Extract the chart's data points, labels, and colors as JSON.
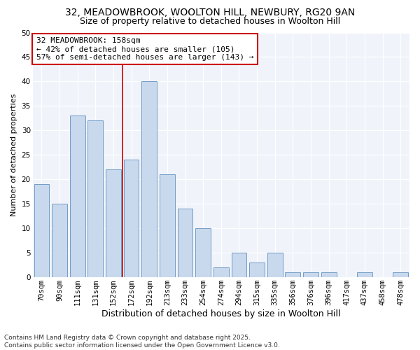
{
  "title": "32, MEADOWBROOK, WOOLTON HILL, NEWBURY, RG20 9AN",
  "subtitle": "Size of property relative to detached houses in Woolton Hill",
  "xlabel": "Distribution of detached houses by size in Woolton Hill",
  "ylabel": "Number of detached properties",
  "categories": [
    "70sqm",
    "90sqm",
    "111sqm",
    "131sqm",
    "152sqm",
    "172sqm",
    "192sqm",
    "213sqm",
    "233sqm",
    "254sqm",
    "274sqm",
    "294sqm",
    "315sqm",
    "335sqm",
    "356sqm",
    "376sqm",
    "396sqm",
    "417sqm",
    "437sqm",
    "458sqm",
    "478sqm"
  ],
  "values": [
    19,
    15,
    33,
    32,
    22,
    24,
    40,
    21,
    14,
    10,
    2,
    5,
    3,
    5,
    1,
    1,
    1,
    0,
    1,
    0,
    1
  ],
  "bar_color": "#c8d8ed",
  "bar_edge_color": "#6090c0",
  "ref_line_x": 4.5,
  "ref_line_color": "#cc0000",
  "annotation_title": "32 MEADOWBROOK: 158sqm",
  "annotation_line1": "← 42% of detached houses are smaller (105)",
  "annotation_line2": "57% of semi-detached houses are larger (143) →",
  "annotation_box_facecolor": "#ffffff",
  "annotation_box_edgecolor": "#cc0000",
  "ylim": [
    0,
    50
  ],
  "yticks": [
    0,
    5,
    10,
    15,
    20,
    25,
    30,
    35,
    40,
    45,
    50
  ],
  "bg_color": "#ffffff",
  "plot_bg_color": "#f0f4fa",
  "grid_color": "#ffffff",
  "footer": "Contains HM Land Registry data © Crown copyright and database right 2025.\nContains public sector information licensed under the Open Government Licence v3.0.",
  "title_fontsize": 10,
  "subtitle_fontsize": 9,
  "xlabel_fontsize": 9,
  "ylabel_fontsize": 8,
  "tick_fontsize": 7.5,
  "annotation_fontsize": 8,
  "footer_fontsize": 6.5
}
